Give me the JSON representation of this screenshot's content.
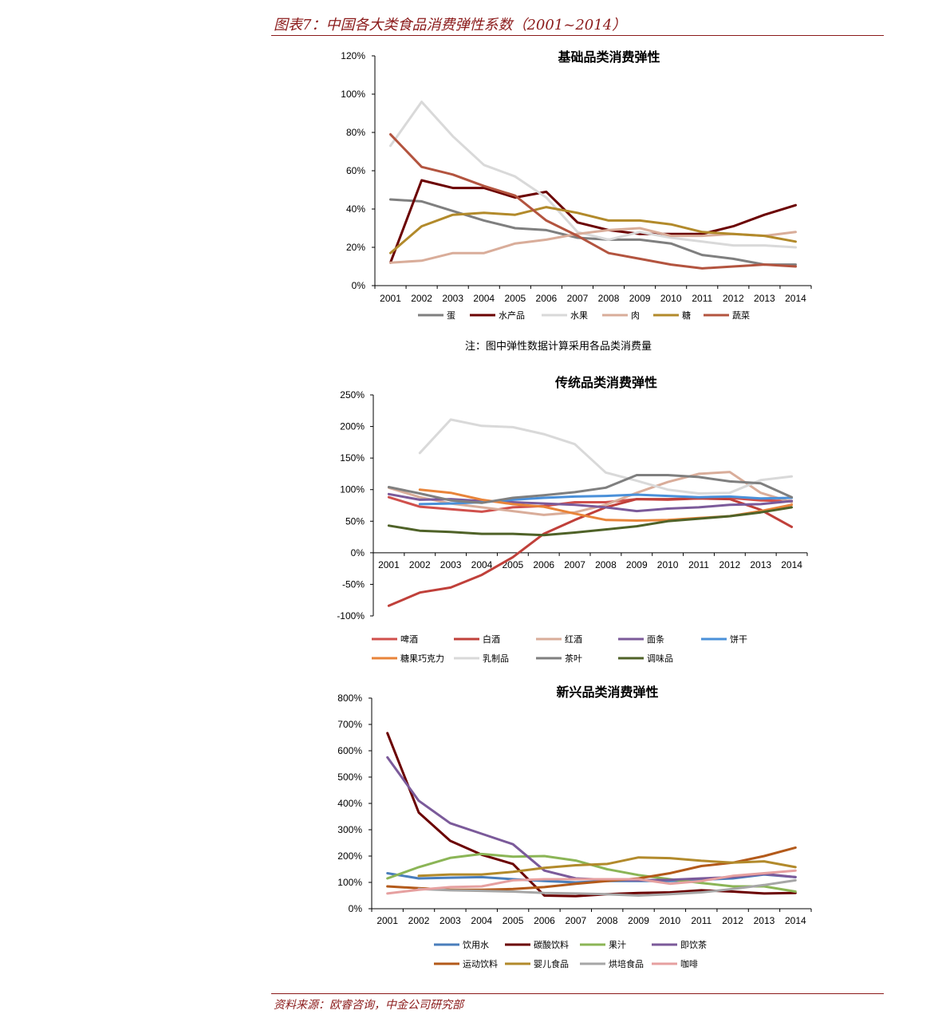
{
  "header": {
    "figure_title": "图表7：中国各大类食品消费弹性系数（2001~2014）"
  },
  "note": "注：图中弹性数据计算采用各品类消费量",
  "source": "资料来源：欧睿咨询，中金公司研究部",
  "chart_data": [
    {
      "type": "line",
      "title": "基础品类消费弹性",
      "x": [
        "2001",
        "2002",
        "2003",
        "2004",
        "2005",
        "2006",
        "2007",
        "2008",
        "2009",
        "2010",
        "2011",
        "2012",
        "2013",
        "2014"
      ],
      "ylim": [
        0,
        1.2
      ],
      "yticks": [
        "0%",
        "20%",
        "40%",
        "60%",
        "80%",
        "100%",
        "120%"
      ],
      "legend": "bottom",
      "series": [
        {
          "name": "蛋",
          "color": "#7f7f7f",
          "values": [
            0.45,
            0.44,
            0.39,
            0.34,
            0.3,
            0.29,
            0.25,
            0.24,
            0.24,
            0.22,
            0.16,
            0.14,
            0.11,
            0.11
          ]
        },
        {
          "name": "水产品",
          "color": "#6b0000",
          "values": [
            0.12,
            0.55,
            0.51,
            0.51,
            0.46,
            0.49,
            0.33,
            0.29,
            0.27,
            0.27,
            0.27,
            0.31,
            0.37,
            0.42
          ]
        },
        {
          "name": "水果",
          "color": "#d9d9d9",
          "values": [
            0.73,
            0.96,
            0.78,
            0.63,
            0.57,
            0.46,
            0.28,
            0.24,
            0.28,
            0.25,
            0.23,
            0.21,
            0.21,
            0.2
          ]
        },
        {
          "name": "肉",
          "color": "#d9ad9a",
          "values": [
            0.12,
            0.13,
            0.17,
            0.17,
            0.22,
            0.24,
            0.27,
            0.29,
            0.3,
            0.26,
            0.26,
            0.27,
            0.26,
            0.28
          ]
        },
        {
          "name": "糖",
          "color": "#b28a2b",
          "values": [
            0.17,
            0.31,
            0.37,
            0.38,
            0.37,
            0.41,
            0.38,
            0.34,
            0.34,
            0.32,
            0.28,
            0.27,
            0.26,
            0.23
          ]
        },
        {
          "name": "蔬菜",
          "color": "#b3543f",
          "values": [
            0.79,
            0.62,
            0.58,
            0.52,
            0.47,
            0.34,
            0.26,
            0.17,
            0.14,
            0.11,
            0.09,
            0.1,
            0.11,
            0.1
          ]
        }
      ]
    },
    {
      "type": "line",
      "title": "传统品类消费弹性",
      "x": [
        "2001",
        "2002",
        "2003",
        "2004",
        "2005",
        "2006",
        "2007",
        "2008",
        "2009",
        "2010",
        "2011",
        "2012",
        "2013",
        "2014"
      ],
      "ylim": [
        -1.0,
        2.5
      ],
      "yticks": [
        "-100%",
        "-50%",
        "0%",
        "50%",
        "100%",
        "150%",
        "200%",
        "250%"
      ],
      "legend": "bottom",
      "series": [
        {
          "name": "啤酒",
          "color": "#d0504c",
          "values": [
            0.88,
            0.73,
            0.69,
            0.65,
            0.72,
            0.74,
            0.8,
            0.8,
            0.85,
            0.84,
            0.86,
            0.87,
            0.83,
            0.82
          ]
        },
        {
          "name": "白酒",
          "color": "#c0403a",
          "values": [
            -0.84,
            -0.63,
            -0.55,
            -0.35,
            -0.07,
            0.3,
            0.52,
            0.72,
            0.85,
            0.85,
            0.86,
            0.85,
            0.68,
            0.41
          ]
        },
        {
          "name": "红酒",
          "color": "#d9ad9a",
          "values": [
            1.03,
            0.88,
            0.78,
            0.72,
            0.66,
            0.6,
            0.64,
            0.76,
            0.95,
            1.12,
            1.25,
            1.28,
            0.95,
            0.8
          ]
        },
        {
          "name": "面条",
          "color": "#7b5a9a",
          "values": [
            0.93,
            0.84,
            0.85,
            0.82,
            0.8,
            0.78,
            0.76,
            0.72,
            0.66,
            0.7,
            0.72,
            0.76,
            0.77,
            0.82
          ]
        },
        {
          "name": "饼干",
          "color": "#4a90d9",
          "values": [
            null,
            0.77,
            0.78,
            0.8,
            0.84,
            0.87,
            0.89,
            0.9,
            0.92,
            0.9,
            0.88,
            0.89,
            0.86,
            0.87
          ]
        },
        {
          "name": "糖果巧克力",
          "color": "#e8843a",
          "values": [
            null,
            1.0,
            0.95,
            0.84,
            0.77,
            0.73,
            0.62,
            0.52,
            0.51,
            0.52,
            0.55,
            0.58,
            0.66,
            0.76
          ]
        },
        {
          "name": "乳制品",
          "color": "#d9d9d9",
          "values": [
            null,
            1.58,
            2.11,
            2.01,
            1.99,
            1.88,
            1.72,
            1.27,
            1.14,
            1.0,
            0.94,
            0.95,
            1.15,
            1.21
          ]
        },
        {
          "name": "茶叶",
          "color": "#7f7f7f",
          "values": [
            1.04,
            0.94,
            0.83,
            0.79,
            0.87,
            0.91,
            0.96,
            1.03,
            1.23,
            1.23,
            1.2,
            1.13,
            1.1,
            0.88
          ]
        },
        {
          "name": "调味品",
          "color": "#4f6228",
          "values": [
            0.43,
            0.35,
            0.33,
            0.3,
            0.3,
            0.28,
            0.32,
            0.37,
            0.42,
            0.5,
            0.54,
            0.58,
            0.64,
            0.72
          ]
        }
      ]
    },
    {
      "type": "line",
      "title": "新兴品类消费弹性",
      "x": [
        "2001",
        "2002",
        "2003",
        "2004",
        "2005",
        "2006",
        "2007",
        "2008",
        "2009",
        "2010",
        "2011",
        "2012",
        "2013",
        "2014"
      ],
      "ylim": [
        0,
        8
      ],
      "yticks": [
        "0%",
        "100%",
        "200%",
        "300%",
        "400%",
        "500%",
        "600%",
        "700%",
        "800%"
      ],
      "legend": "bottom",
      "series": [
        {
          "name": "饮用水",
          "color": "#4a7ebb",
          "values": [
            1.35,
            1.15,
            1.18,
            1.2,
            1.12,
            1.05,
            1.0,
            1.05,
            1.05,
            1.05,
            1.1,
            1.15,
            1.3,
            1.2
          ]
        },
        {
          "name": "碳酸饮料",
          "color": "#6b0000",
          "values": [
            6.67,
            3.65,
            2.58,
            2.05,
            1.7,
            0.5,
            0.48,
            0.55,
            0.6,
            0.62,
            0.7,
            0.65,
            0.58,
            0.6
          ]
        },
        {
          "name": "果汁",
          "color": "#8bb556",
          "values": [
            1.15,
            1.58,
            1.93,
            2.08,
            1.98,
            2.0,
            1.83,
            1.5,
            1.28,
            1.12,
            0.98,
            0.85,
            0.85,
            0.65
          ]
        },
        {
          "name": "即饮茶",
          "color": "#7b5a9a",
          "values": [
            5.75,
            4.1,
            3.25,
            2.85,
            2.45,
            1.45,
            1.15,
            1.1,
            1.08,
            1.1,
            1.15,
            1.2,
            1.32,
            1.2
          ]
        },
        {
          "name": "运动饮料",
          "color": "#b35a1a",
          "values": [
            0.85,
            0.78,
            0.72,
            0.72,
            0.75,
            0.82,
            0.95,
            1.05,
            1.15,
            1.35,
            1.62,
            1.75,
            2.0,
            2.32
          ]
        },
        {
          "name": "婴儿食品",
          "color": "#b28a2b",
          "values": [
            null,
            1.25,
            1.3,
            1.3,
            1.4,
            1.55,
            1.65,
            1.7,
            1.95,
            1.92,
            1.82,
            1.75,
            1.8,
            1.58
          ]
        },
        {
          "name": "烘培食品",
          "color": "#a6a6a6",
          "values": [
            null,
            0.75,
            0.7,
            0.68,
            0.65,
            0.6,
            0.58,
            0.55,
            0.5,
            0.55,
            0.62,
            0.75,
            0.9,
            1.08
          ]
        },
        {
          "name": "咖啡",
          "color": "#e6a0a0",
          "values": [
            0.58,
            0.72,
            0.82,
            0.85,
            1.08,
            1.12,
            1.12,
            1.12,
            1.12,
            0.95,
            1.05,
            1.25,
            1.35,
            1.45
          ]
        }
      ]
    }
  ]
}
